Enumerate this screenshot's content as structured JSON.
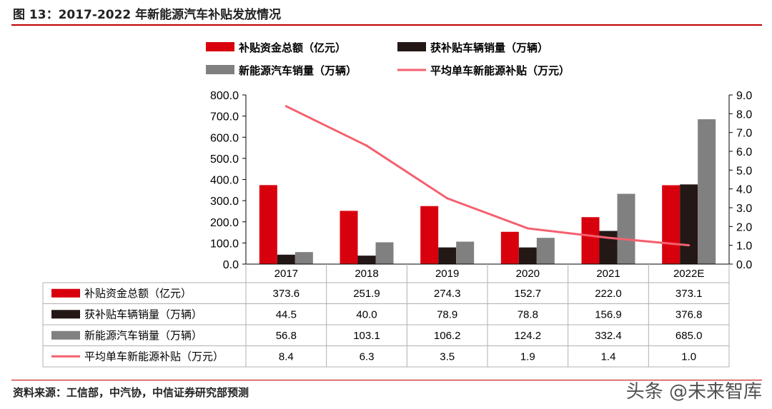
{
  "header": {
    "title": "图 13：2017-2022 年新能源汽车补贴发放情况"
  },
  "footer": {
    "source": "资料来源：工信部，中汽协，中信证券研究部预测",
    "watermark": "头条 @未来智库"
  },
  "chart_data": {
    "type": "bar",
    "categories": [
      "2017",
      "2018",
      "2019",
      "2020",
      "2021",
      "2022E"
    ],
    "series": [
      {
        "name": "补贴资金总额（亿元）",
        "kind": "bar",
        "axis": "left",
        "color": "#d9000d",
        "values": [
          373.6,
          251.9,
          274.3,
          152.7,
          222.0,
          373.1
        ],
        "labels": [
          "373.6",
          "251.9",
          "274.3",
          "152.7",
          "222.0",
          "373.1"
        ]
      },
      {
        "name": "获补贴车辆销量（万辆）",
        "kind": "bar",
        "axis": "left",
        "color": "#231815",
        "values": [
          44.5,
          40.0,
          78.9,
          78.8,
          156.9,
          376.8
        ],
        "labels": [
          "44.5",
          "40.0",
          "78.9",
          "78.8",
          "156.9",
          "376.8"
        ]
      },
      {
        "name": "新能源汽车销量（万辆）",
        "kind": "bar",
        "axis": "left",
        "color": "#808080",
        "values": [
          56.8,
          103.1,
          106.2,
          124.2,
          332.4,
          685.0
        ],
        "labels": [
          "56.8",
          "103.1",
          "106.2",
          "124.2",
          "332.4",
          "685.0"
        ]
      },
      {
        "name": "平均单车新能源补贴（万元）",
        "kind": "line",
        "axis": "right",
        "color": "#f4606f",
        "values": [
          8.4,
          6.3,
          3.5,
          1.9,
          1.4,
          1.0
        ],
        "labels": [
          "8.4",
          "6.3",
          "3.5",
          "1.9",
          "1.4",
          "1.0"
        ]
      }
    ],
    "y_left": {
      "range": [
        0,
        800
      ],
      "ticks": [
        "0.0",
        "100.0",
        "200.0",
        "300.0",
        "400.0",
        "500.0",
        "600.0",
        "700.0",
        "800.0"
      ]
    },
    "y_right": {
      "range": [
        0,
        9
      ],
      "ticks": [
        "0.0",
        "1.0",
        "2.0",
        "3.0",
        "4.0",
        "5.0",
        "6.0",
        "7.0",
        "8.0",
        "9.0"
      ]
    },
    "legend": "top",
    "data_table": true,
    "grid": false
  }
}
